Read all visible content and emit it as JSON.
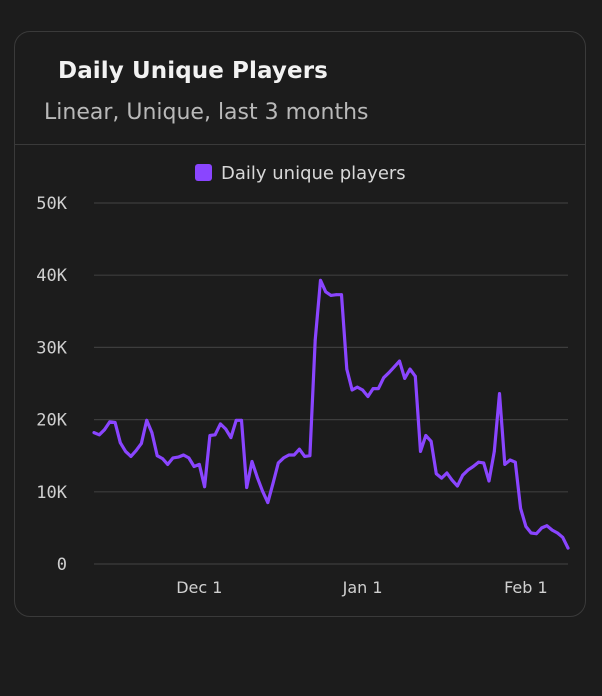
{
  "card": {
    "title": "Daily Unique Players",
    "subtitle": "Linear, Unique, last 3 months"
  },
  "colors": {
    "background": "#1c1c1c",
    "series": "#8a45ff",
    "grid": "#3d3d3d",
    "border": "#3a3a3a"
  },
  "chart_data": {
    "type": "line",
    "legend": {
      "position": "top-center",
      "entries": [
        "Daily unique players"
      ]
    },
    "grid": true,
    "ylim": [
      0,
      50000
    ],
    "y_ticks": [
      {
        "value": 50000,
        "label": "50K"
      },
      {
        "value": 40000,
        "label": "40K"
      },
      {
        "value": 30000,
        "label": "30K"
      },
      {
        "value": 20000,
        "label": "20K"
      },
      {
        "value": 10000,
        "label": "10K"
      },
      {
        "value": 0,
        "label": "0"
      }
    ],
    "x_ticks": [
      {
        "date": "2023-12-01",
        "label": "Dec 1"
      },
      {
        "date": "2024-01-01",
        "label": "Jan 1"
      },
      {
        "date": "2024-02-01",
        "label": "Feb 1"
      }
    ],
    "xlim": [
      "2023-11-11",
      "2024-02-09"
    ],
    "series": [
      {
        "name": "Daily unique players",
        "color": "#8a45ff",
        "x": [
          "2023-11-11",
          "2023-11-12",
          "2023-11-13",
          "2023-11-14",
          "2023-11-15",
          "2023-11-16",
          "2023-11-17",
          "2023-11-18",
          "2023-11-19",
          "2023-11-20",
          "2023-11-21",
          "2023-11-22",
          "2023-11-23",
          "2023-11-24",
          "2023-11-25",
          "2023-11-26",
          "2023-11-27",
          "2023-11-28",
          "2023-11-29",
          "2023-11-30",
          "2023-12-01",
          "2023-12-02",
          "2023-12-03",
          "2023-12-04",
          "2023-12-05",
          "2023-12-06",
          "2023-12-07",
          "2023-12-08",
          "2023-12-09",
          "2023-12-10",
          "2023-12-11",
          "2023-12-12",
          "2023-12-13",
          "2023-12-14",
          "2023-12-15",
          "2023-12-16",
          "2023-12-17",
          "2023-12-18",
          "2023-12-19",
          "2023-12-20",
          "2023-12-21",
          "2023-12-22",
          "2023-12-23",
          "2023-12-24",
          "2023-12-25",
          "2023-12-26",
          "2023-12-27",
          "2023-12-28",
          "2023-12-29",
          "2023-12-30",
          "2023-12-31",
          "2024-01-01",
          "2024-01-02",
          "2024-01-03",
          "2024-01-04",
          "2024-01-05",
          "2024-01-06",
          "2024-01-07",
          "2024-01-08",
          "2024-01-09",
          "2024-01-10",
          "2024-01-11",
          "2024-01-12",
          "2024-01-13",
          "2024-01-14",
          "2024-01-15",
          "2024-01-16",
          "2024-01-17",
          "2024-01-18",
          "2024-01-19",
          "2024-01-20",
          "2024-01-21",
          "2024-01-22",
          "2024-01-23",
          "2024-01-24",
          "2024-01-25",
          "2024-01-26",
          "2024-01-27",
          "2024-01-28",
          "2024-01-29",
          "2024-01-30",
          "2024-01-31",
          "2024-02-01",
          "2024-02-02",
          "2024-02-03",
          "2024-02-04",
          "2024-02-05",
          "2024-02-06",
          "2024-02-07",
          "2024-02-08",
          "2024-02-09"
        ],
        "values": [
          18200,
          17900,
          18600,
          19700,
          19600,
          16800,
          15600,
          14900,
          15700,
          16700,
          19900,
          18200,
          15000,
          14600,
          13800,
          14700,
          14800,
          15100,
          14700,
          13500,
          13800,
          10700,
          17800,
          17900,
          19400,
          18700,
          17500,
          19900,
          19900,
          10600,
          14200,
          12000,
          10100,
          8500,
          11200,
          14000,
          14700,
          15100,
          15100,
          15900,
          14900,
          15000,
          31000,
          39300,
          37700,
          37200,
          37300,
          37300,
          27000,
          24100,
          24500,
          24100,
          23200,
          24300,
          24300,
          25800,
          26500,
          27300,
          28100,
          25700,
          27000,
          26000,
          15600,
          17800,
          17000,
          12500,
          11900,
          12600,
          11600,
          10800,
          12300,
          13000,
          13500,
          14100,
          14000,
          11500,
          15600,
          23600,
          13800,
          14400,
          14100,
          7700,
          5200,
          4300,
          4200,
          5000,
          5300,
          4700,
          4300,
          3700,
          2200
        ]
      }
    ]
  }
}
